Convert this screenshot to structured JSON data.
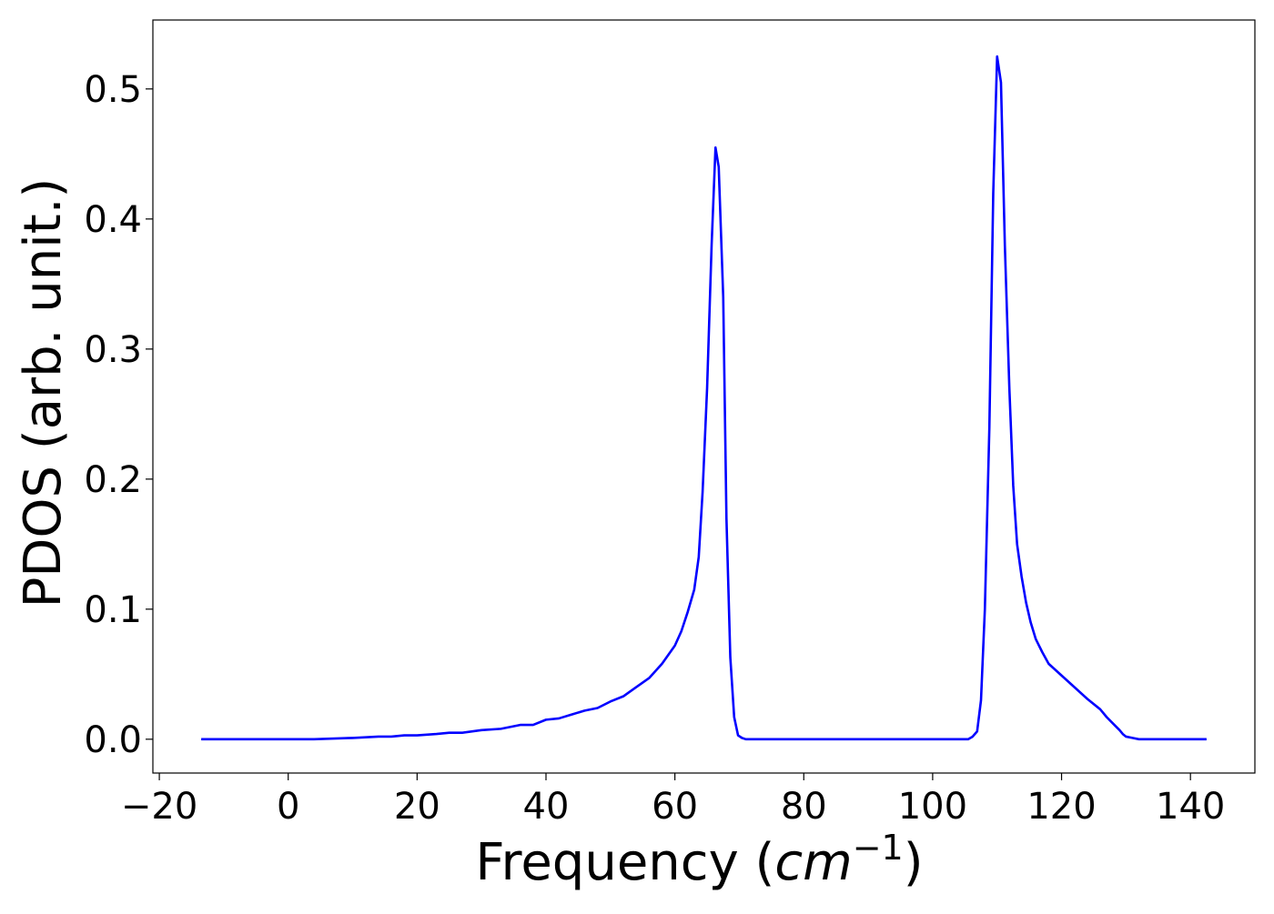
{
  "chart_data": {
    "type": "line",
    "title": "",
    "xlabel": "Frequency (",
    "xlabel_math": "cm",
    "xlabel_sup": "−1",
    "xlabel_close": ")",
    "ylabel": "PDOS (arb. unit.)",
    "xlim": [
      -21,
      150
    ],
    "ylim": [
      -0.026,
      0.553
    ],
    "grid": false,
    "legend": "none",
    "x_ticks": [
      {
        "value": -20,
        "label": "−20"
      },
      {
        "value": 0,
        "label": "0"
      },
      {
        "value": 20,
        "label": "20"
      },
      {
        "value": 40,
        "label": "40"
      },
      {
        "value": 60,
        "label": "60"
      },
      {
        "value": 80,
        "label": "80"
      },
      {
        "value": 100,
        "label": "100"
      },
      {
        "value": 120,
        "label": "120"
      },
      {
        "value": 140,
        "label": "140"
      }
    ],
    "y_ticks": [
      {
        "value": 0.0,
        "label": "0.0"
      },
      {
        "value": 0.1,
        "label": "0.1"
      },
      {
        "value": 0.2,
        "label": "0.2"
      },
      {
        "value": 0.3,
        "label": "0.3"
      },
      {
        "value": 0.4,
        "label": "0.4"
      },
      {
        "value": 0.5,
        "label": "0.5"
      }
    ],
    "series": [
      {
        "color": "#0000ff",
        "x": [
          -13.5,
          0,
          4,
          10,
          14,
          16,
          18,
          20,
          23,
          25,
          27,
          30,
          33,
          36,
          38,
          40,
          42,
          44,
          46,
          48,
          50,
          52,
          54,
          56,
          58,
          60,
          61,
          62,
          63,
          63.7,
          64.3,
          65,
          65.7,
          66.3,
          66.8,
          67.5,
          68.0,
          68.6,
          69.2,
          69.8,
          70.4,
          71.0,
          71.6,
          72.5,
          74,
          80,
          90,
          100,
          104,
          105.5,
          106.2,
          106.9,
          107.5,
          108.1,
          108.8,
          109.4,
          110.0,
          110.6,
          111.2,
          111.9,
          112.5,
          113.1,
          113.8,
          114.5,
          115.2,
          116,
          117,
          118,
          120,
          122,
          124,
          126,
          127,
          128,
          129,
          129.5,
          130,
          131,
          132,
          134,
          142.5
        ],
        "y": [
          0.0,
          0.0,
          0.0,
          0.001,
          0.002,
          0.002,
          0.003,
          0.003,
          0.004,
          0.005,
          0.005,
          0.007,
          0.008,
          0.011,
          0.011,
          0.015,
          0.016,
          0.019,
          0.022,
          0.024,
          0.029,
          0.033,
          0.04,
          0.047,
          0.058,
          0.072,
          0.083,
          0.098,
          0.115,
          0.14,
          0.19,
          0.27,
          0.38,
          0.455,
          0.44,
          0.34,
          0.17,
          0.063,
          0.017,
          0.003,
          0.001,
          0.0,
          0.0,
          0.0,
          0.0,
          0.0,
          0.0,
          0.0,
          0.0,
          0.0,
          0.002,
          0.006,
          0.03,
          0.1,
          0.24,
          0.42,
          0.525,
          0.505,
          0.38,
          0.27,
          0.195,
          0.15,
          0.125,
          0.105,
          0.09,
          0.077,
          0.067,
          0.058,
          0.049,
          0.04,
          0.031,
          0.023,
          0.017,
          0.012,
          0.007,
          0.004,
          0.002,
          0.001,
          0.0,
          0.0,
          0.0
        ]
      }
    ]
  }
}
